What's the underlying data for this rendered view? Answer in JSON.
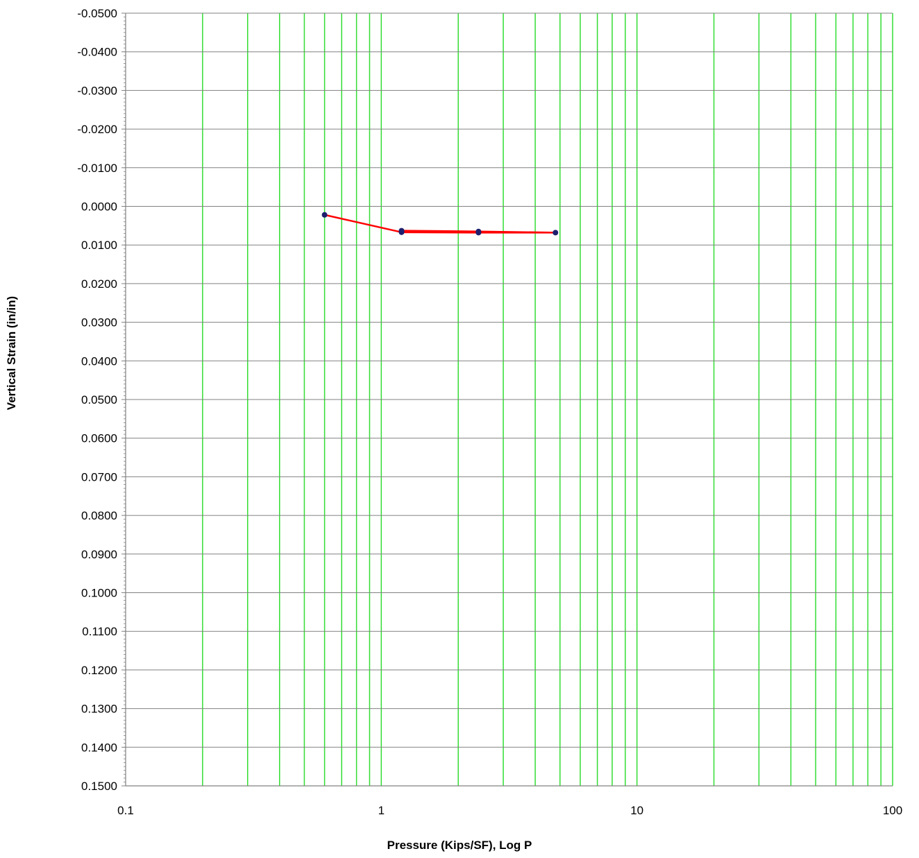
{
  "chart_data": {
    "type": "scatter",
    "title": "",
    "xlabel": "Pressure (Kips/SF), Log P",
    "ylabel": "Vertical Strain (in/in)",
    "x_scale": "log",
    "xlim": [
      0.1,
      100
    ],
    "ylim": [
      -0.05,
      0.15
    ],
    "y_inverted": true,
    "x_ticks": [
      "0.1",
      "1",
      "10",
      "100"
    ],
    "y_ticks": [
      "-0.0500",
      "-0.0400",
      "-0.0300",
      "-0.0200",
      "-0.0100",
      "0.0000",
      "0.0100",
      "0.0200",
      "0.0300",
      "0.0400",
      "0.0500",
      "0.0600",
      "0.0700",
      "0.0800",
      "0.0900",
      "0.1000",
      "0.1100",
      "0.1200",
      "0.1300",
      "0.1400",
      "0.1500"
    ],
    "grid": {
      "x_minor_log": true,
      "y_major": true
    },
    "colors": {
      "line": "#ff0000",
      "marker": "#1f1f6e",
      "x_grid": "#33dd33",
      "y_grid": "#808080",
      "axis": "#808080"
    },
    "series": [
      {
        "x": [
          0.6,
          1.2,
          2.4,
          4.8,
          2.4,
          1.2
        ],
        "y": [
          0.0022,
          0.0067,
          0.0068,
          0.0068,
          0.0065,
          0.0063
        ]
      }
    ]
  }
}
